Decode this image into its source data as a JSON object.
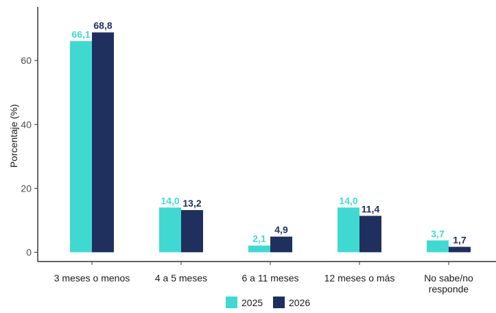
{
  "chart_data": {
    "type": "bar",
    "categories": [
      [
        "3 meses o menos"
      ],
      [
        "4 a 5 meses"
      ],
      [
        "6 a 11 meses"
      ],
      [
        "12 meses o más"
      ],
      [
        "No sabe/no",
        "responde"
      ]
    ],
    "series": [
      {
        "name": "2025",
        "color": "#40d9d2",
        "values": [
          66.1,
          14.0,
          2.1,
          14.0,
          3.7
        ],
        "labels": [
          "66,1",
          "14,0",
          "2,1",
          "14,0",
          "3,7"
        ]
      },
      {
        "name": "2026",
        "color": "#1f2f5e",
        "values": [
          68.8,
          13.2,
          4.9,
          11.4,
          1.7
        ],
        "labels": [
          "68,8",
          "13,2",
          "4,9",
          "11,4",
          "1,7"
        ]
      }
    ],
    "ylabel": "Porcentaje (%)",
    "ylim": [
      0,
      70
    ],
    "yticks": [
      0,
      20,
      40,
      60
    ],
    "ytick_labels": [
      "0",
      "20",
      "40",
      "60"
    ],
    "grid": false,
    "legend_position": "bottom"
  }
}
